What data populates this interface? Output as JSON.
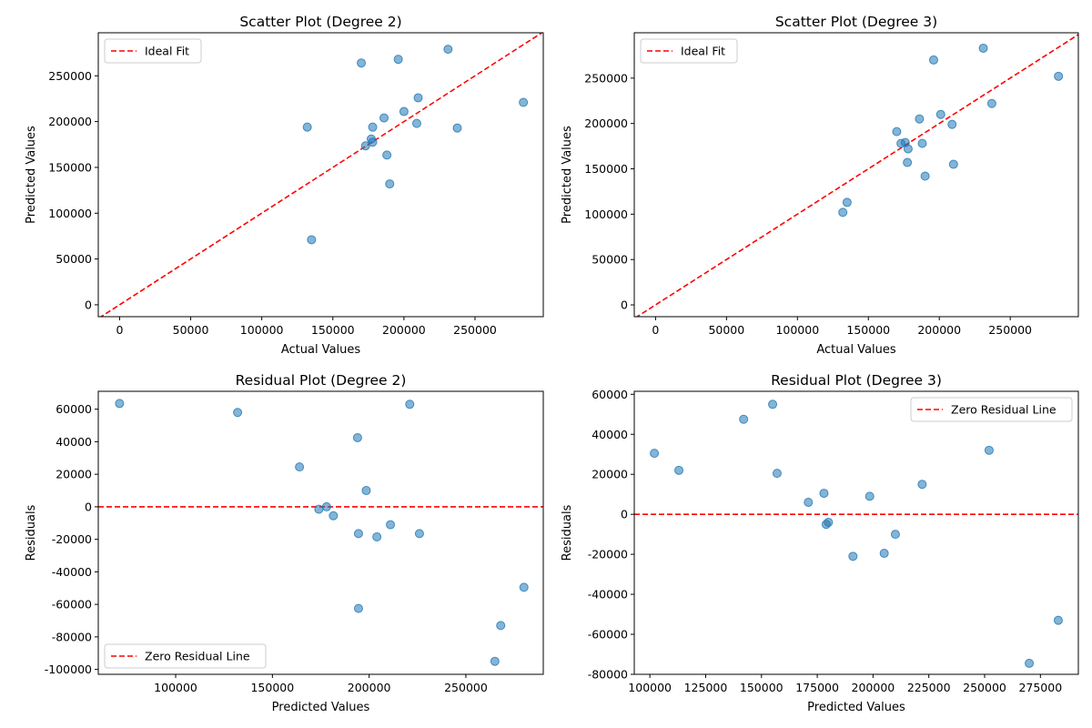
{
  "chart_data": [
    {
      "type": "scatter",
      "title": "Scatter Plot (Degree 2)",
      "xlabel": "Actual Values",
      "ylabel": "Predicted Values",
      "xlim": [
        -15000,
        298000
      ],
      "ylim": [
        -13000,
        297000
      ],
      "xticks": [
        0,
        50000,
        100000,
        150000,
        200000,
        250000
      ],
      "yticks": [
        0,
        50000,
        100000,
        150000,
        200000,
        250000
      ],
      "point_color": "#1f77b4",
      "legend": {
        "position": "upper left",
        "entries": [
          {
            "label": "Ideal Fit",
            "color": "#ff0000",
            "style": "dashed"
          }
        ]
      },
      "reference_line": {
        "type": "y=x",
        "color": "#ff0000",
        "style": "dashed"
      },
      "series": [
        {
          "points": [
            [
              170000,
              264000
            ],
            [
              196000,
              268000
            ],
            [
              231000,
              279000
            ],
            [
              284000,
              221000
            ],
            [
              210000,
              226000
            ],
            [
              200000,
              211000
            ],
            [
              186000,
              204000
            ],
            [
              209000,
              198000
            ],
            [
              237500,
              193000
            ],
            [
              132000,
              194000
            ],
            [
              178000,
              194000
            ],
            [
              177000,
              181000
            ],
            [
              178000,
              177500
            ],
            [
              173000,
              173500
            ],
            [
              188000,
              163500
            ],
            [
              190000,
              132000
            ],
            [
              135000,
              71000
            ]
          ]
        }
      ]
    },
    {
      "type": "scatter",
      "title": "Scatter Plot (Degree 3)",
      "xlabel": "Actual Values",
      "ylabel": "Predicted Values",
      "xlim": [
        -15000,
        298000
      ],
      "ylim": [
        -13000,
        300000
      ],
      "xticks": [
        0,
        50000,
        100000,
        150000,
        200000,
        250000
      ],
      "yticks": [
        0,
        50000,
        100000,
        150000,
        200000,
        250000
      ],
      "point_color": "#1f77b4",
      "legend": {
        "position": "upper left",
        "entries": [
          {
            "label": "Ideal Fit",
            "color": "#ff0000",
            "style": "dashed"
          }
        ]
      },
      "reference_line": {
        "type": "y=x",
        "color": "#ff0000",
        "style": "dashed"
      },
      "series": [
        {
          "points": [
            [
              231000,
              283000
            ],
            [
              196000,
              270000
            ],
            [
              284000,
              252000
            ],
            [
              237000,
              222000
            ],
            [
              201000,
              210000
            ],
            [
              186000,
              205000
            ],
            [
              209000,
              199000
            ],
            [
              170000,
              191000
            ],
            [
              173000,
              178000
            ],
            [
              176000,
              179000
            ],
            [
              188000,
              178000
            ],
            [
              178000,
              172000
            ],
            [
              177500,
              157000
            ],
            [
              190000,
              142000
            ],
            [
              210000,
              155000
            ],
            [
              135000,
              113000
            ],
            [
              132000,
              102000
            ]
          ]
        }
      ]
    },
    {
      "type": "scatter",
      "title": "Residual Plot (Degree 2)",
      "xlabel": "Predicted Values",
      "ylabel": "Residuals",
      "xlim": [
        60000,
        290000
      ],
      "ylim": [
        -103000,
        71000
      ],
      "xticks": [
        100000,
        150000,
        200000,
        250000
      ],
      "yticks": [
        -100000,
        -80000,
        -60000,
        -40000,
        -20000,
        0,
        20000,
        40000,
        60000
      ],
      "point_color": "#1f77b4",
      "legend": {
        "position": "lower left",
        "entries": [
          {
            "label": "Zero Residual Line",
            "color": "#ff0000",
            "style": "dashed"
          }
        ]
      },
      "reference_line": {
        "type": "y=0",
        "color": "#ff0000",
        "style": "dashed"
      },
      "series": [
        {
          "points": [
            [
              71000,
              63500
            ],
            [
              132000,
              58000
            ],
            [
              221000,
              63000
            ],
            [
              194000,
              42500
            ],
            [
              164000,
              24500
            ],
            [
              198500,
              10000
            ],
            [
              174000,
              -1500
            ],
            [
              178000,
              0
            ],
            [
              181500,
              -5500
            ],
            [
              211000,
              -11000
            ],
            [
              194500,
              -16500
            ],
            [
              226000,
              -16500
            ],
            [
              204000,
              -18500
            ],
            [
              194500,
              -62500
            ],
            [
              280000,
              -49500
            ],
            [
              268000,
              -73000
            ],
            [
              265000,
              -95000
            ]
          ]
        }
      ]
    },
    {
      "type": "scatter",
      "title": "Residual Plot (Degree 3)",
      "xlabel": "Predicted Values",
      "ylabel": "Residuals",
      "xlim": [
        93000,
        292000
      ],
      "ylim": [
        -80000,
        61500
      ],
      "xticks": [
        100000,
        125000,
        150000,
        175000,
        200000,
        225000,
        250000,
        275000
      ],
      "yticks": [
        -80000,
        -60000,
        -40000,
        -20000,
        0,
        20000,
        40000,
        60000
      ],
      "point_color": "#1f77b4",
      "legend": {
        "position": "upper right",
        "entries": [
          {
            "label": "Zero Residual Line",
            "color": "#ff0000",
            "style": "dashed"
          }
        ]
      },
      "reference_line": {
        "type": "y=0",
        "color": "#ff0000",
        "style": "dashed"
      },
      "series": [
        {
          "points": [
            [
              102000,
              30500
            ],
            [
              113000,
              22000
            ],
            [
              142000,
              47500
            ],
            [
              155000,
              55000
            ],
            [
              157000,
              20500
            ],
            [
              171000,
              6000
            ],
            [
              178000,
              10500
            ],
            [
              179000,
              -5000
            ],
            [
              180000,
              -4000
            ],
            [
              191000,
              -21000
            ],
            [
              198500,
              9000
            ],
            [
              205000,
              -19500
            ],
            [
              210000,
              -10000
            ],
            [
              222000,
              15000
            ],
            [
              252000,
              32000
            ],
            [
              270000,
              -74500
            ],
            [
              283000,
              -53000
            ]
          ]
        }
      ]
    }
  ]
}
